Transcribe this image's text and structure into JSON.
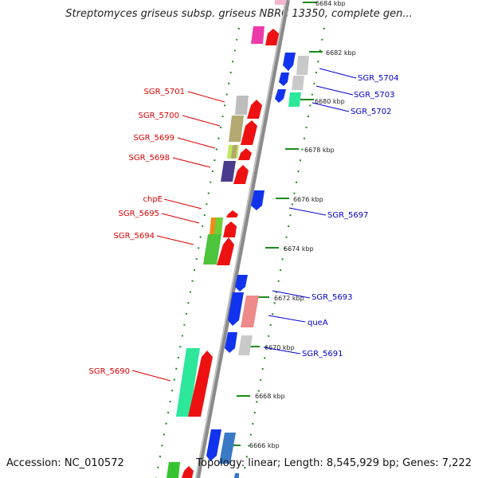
{
  "title": "Streptomyces griseus subsp. griseus NBRC 13350, complete gen...",
  "footer": {
    "accession": "Accession: NC_010572",
    "topology": "Topology: linear; Length: 8,545,929 bp; Genes: 7,222"
  },
  "kbp_labels": [
    "6684 kbp",
    "6682 kbp",
    "6680 kbp",
    "6678 kbp",
    "6676 kbp",
    "6674 kbp",
    "6672 kbp",
    "6670 kbp",
    "6668 kbp",
    "6666 kbp"
  ],
  "gene_labels_left": [
    "SGR_5701",
    "SGR_5700",
    "SGR_5699",
    "SGR_5698",
    "chpE",
    "SGR_5695",
    "SGR_5694",
    "SGR_5690"
  ],
  "gene_labels_right": [
    "SGR_5704",
    "SGR_5703",
    "SGR_5702",
    "SGR_5697",
    "SGR_5693",
    "queA",
    "SGR_5691"
  ],
  "colors": {
    "axis": "#8a8a8a",
    "tick": "#1a8a1a",
    "forward_strand": "#ee1111",
    "reverse_strand": "#1133ee",
    "label_left": "#dd0000",
    "label_right": "#0000cc"
  }
}
